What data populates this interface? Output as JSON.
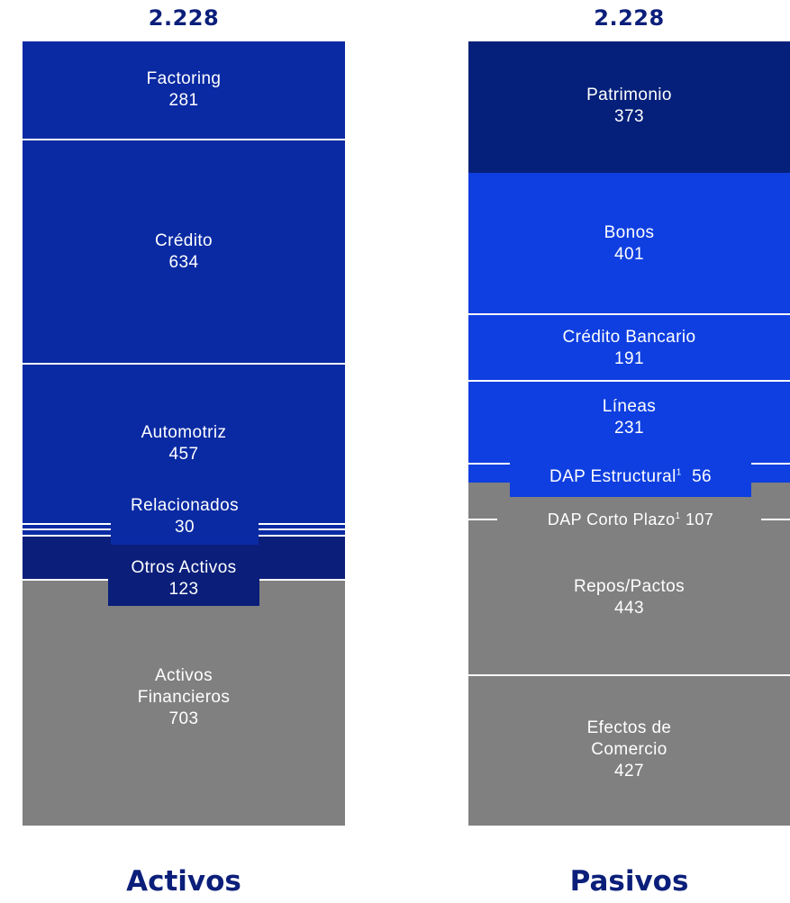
{
  "chart_data": {
    "type": "stacked-bar",
    "columns": [
      {
        "title": "Activos",
        "total": "2.228",
        "segments": [
          {
            "label": "Factoring",
            "value": 281,
            "color": "#0a2aa3"
          },
          {
            "label": "Crédito",
            "value": 634,
            "color": "#0a2aa3"
          },
          {
            "label": "Automotriz",
            "value": 457,
            "color": "#0a2aa3"
          },
          {
            "label": "Relacionados",
            "value": 30,
            "color": "#0a2aa3"
          },
          {
            "label": "Otros Activos",
            "value": 123,
            "color": "#0a1e7a"
          },
          {
            "label": "Activos Financieros",
            "value": 703,
            "color": "#808080"
          }
        ]
      },
      {
        "title": "Pasivos",
        "total": "2.228",
        "segments": [
          {
            "label": "Patrimonio",
            "value": 373,
            "color": "#05207a"
          },
          {
            "label": "Bonos",
            "value": 401,
            "color": "#0f3fe0"
          },
          {
            "label": "Crédito Bancario",
            "value": 191,
            "color": "#0f3fe0"
          },
          {
            "label": "Líneas",
            "value": 231,
            "color": "#0f3fe0"
          },
          {
            "label": "DAP Estructural",
            "value": 56,
            "color": "#0f3fe0",
            "footnote": "1"
          },
          {
            "label": "DAP Corto Plazo",
            "value": 107,
            "color": "#808080",
            "footnote": "1"
          },
          {
            "label": "Repos/Pactos",
            "value": 443,
            "color": "#808080"
          },
          {
            "label": "Efectos de Comercio",
            "value": 427,
            "color": "#808080"
          }
        ]
      }
    ]
  },
  "labels": {
    "activos_title": "Activos",
    "pasivos_title": "Pasivos",
    "activos_total": "2.228",
    "pasivos_total": "2.228",
    "factoring": "Factoring",
    "factoring_v": "281",
    "credito": "Crédito",
    "credito_v": "634",
    "automotriz": "Automotriz",
    "automotriz_v": "457",
    "relacionados": "Relacionados",
    "relacionados_v": "30",
    "otros": "Otros Activos",
    "otros_v": "123",
    "act_fin_1": "Activos",
    "act_fin_2": "Financieros",
    "act_fin_v": "703",
    "patrimonio": "Patrimonio",
    "patrimonio_v": "373",
    "bonos": "Bonos",
    "bonos_v": "401",
    "cred_banc": "Crédito Bancario",
    "cred_banc_v": "191",
    "lineas": "Líneas",
    "lineas_v": "231",
    "dap_est": "DAP Estructural",
    "dap_est_sup": "1",
    "dap_est_v": "56",
    "dap_cp": "DAP Corto Plazo",
    "dap_cp_sup": "1",
    "dap_cp_v": "107",
    "repos": "Repos/Pactos",
    "repos_v": "443",
    "efectos_1": "Efectos de",
    "efectos_2": "Comercio",
    "efectos_v": "427"
  }
}
